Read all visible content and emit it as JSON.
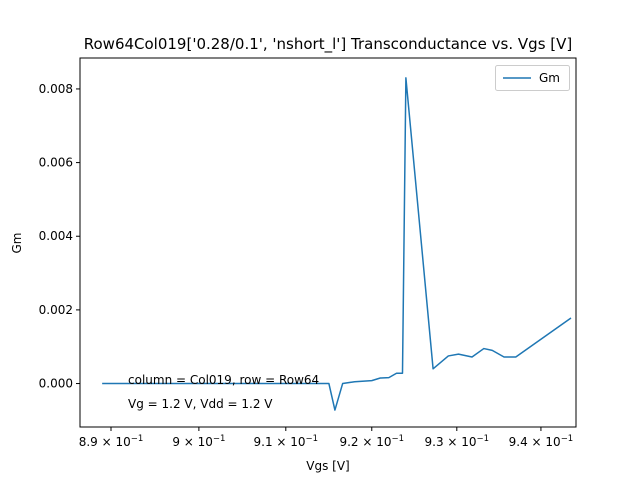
{
  "chart_data": {
    "type": "line",
    "title": "Row64Col019['0.28/0.1', 'nshort_l'] Transconductance vs. Vgs [V]",
    "xlabel": "Vgs [V]",
    "ylabel": "Gm",
    "xscale": "log",
    "xlim": [
      0.8865,
      0.9442
    ],
    "ylim": [
      -0.00118,
      0.00884
    ],
    "x_ticks": [
      0.89,
      0.9,
      0.91,
      0.92,
      0.93,
      0.94
    ],
    "x_tick_labels": [
      {
        "base": "8.9 × 10",
        "exp": "−1"
      },
      {
        "base": "9 × 10",
        "exp": "−1"
      },
      {
        "base": "9.1 × 10",
        "exp": "−1"
      },
      {
        "base": "9.2 × 10",
        "exp": "−1"
      },
      {
        "base": "9.3 × 10",
        "exp": "−1"
      },
      {
        "base": "9.4 × 10",
        "exp": "−1"
      }
    ],
    "y_ticks": [
      0.0,
      0.002,
      0.004,
      0.006,
      0.008
    ],
    "y_tick_labels": [
      "0.000",
      "0.002",
      "0.004",
      "0.006",
      "0.008"
    ],
    "grid": false,
    "legend_position": "upper right",
    "color": "#1f77b4",
    "series": [
      {
        "name": "Gm",
        "x": [
          0.889,
          0.895,
          0.9,
          0.905,
          0.91,
          0.915,
          0.9157,
          0.9166,
          0.918,
          0.92,
          0.921,
          0.922,
          0.9229,
          0.9236,
          0.924,
          0.9272,
          0.929,
          0.9302,
          0.9318,
          0.9332,
          0.9342,
          0.9356,
          0.937,
          0.9436
        ],
        "y": [
          0.0,
          0.0,
          0.0,
          0.0,
          0.0,
          0.0,
          -0.00072,
          0.0,
          5e-05,
          8e-05,
          0.00015,
          0.00016,
          0.00028,
          0.00028,
          0.0083,
          0.0004,
          0.00075,
          0.0008,
          0.00072,
          0.00095,
          0.0009,
          0.00072,
          0.00072,
          0.00178
        ]
      }
    ],
    "annotations": [
      "column = Col019, row = Row64",
      "Vg = 1.2 V, Vdd = 1.2 V"
    ]
  }
}
